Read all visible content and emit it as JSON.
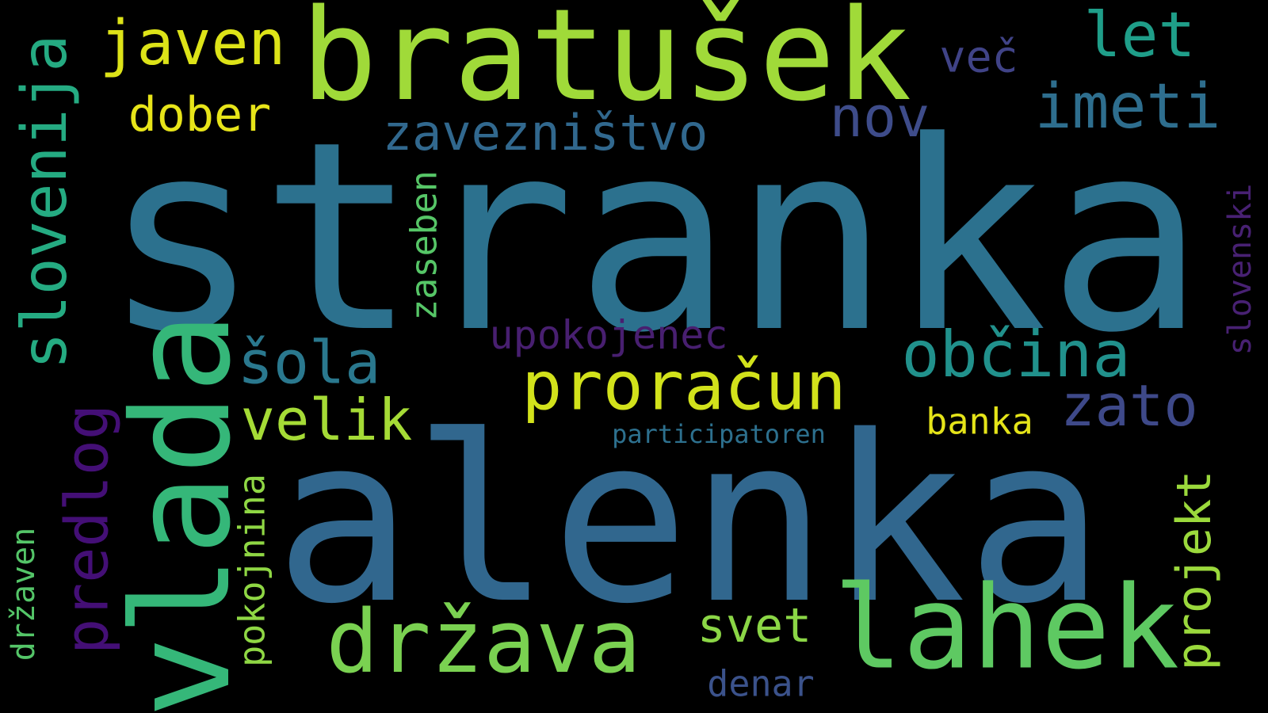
{
  "word_cloud": {
    "background": "#000000",
    "words": [
      {
        "id": "stranka",
        "text": "stranka",
        "color": "#2c718e",
        "orientation": "horizontal"
      },
      {
        "id": "alenka",
        "text": "alenka",
        "color": "#31678e",
        "orientation": "horizontal"
      },
      {
        "id": "bratusek",
        "text": "bratušek",
        "color": "#a0da39",
        "orientation": "horizontal"
      },
      {
        "id": "vlada",
        "text": "vlada",
        "color": "#35b779",
        "orientation": "vertical"
      },
      {
        "id": "lahek",
        "text": "lahek",
        "color": "#5ec962",
        "orientation": "horizontal"
      },
      {
        "id": "drzava",
        "text": "država",
        "color": "#7ad151",
        "orientation": "horizontal"
      },
      {
        "id": "proracun",
        "text": "proračun",
        "color": "#d2e21b",
        "orientation": "horizontal"
      },
      {
        "id": "obcina",
        "text": "občina",
        "color": "#21918c",
        "orientation": "horizontal"
      },
      {
        "id": "slovenija",
        "text": "slovenija",
        "color": "#25ab82",
        "orientation": "vertical"
      },
      {
        "id": "imeti",
        "text": "imeti",
        "color": "#2e6e8e",
        "orientation": "horizontal"
      },
      {
        "id": "javen",
        "text": "javen",
        "color": "#dde318",
        "orientation": "horizontal"
      },
      {
        "id": "let",
        "text": "let",
        "color": "#1f9e89",
        "orientation": "horizontal"
      },
      {
        "id": "zaveznistvo",
        "text": "zavezništvo",
        "color": "#31688e",
        "orientation": "horizontal"
      },
      {
        "id": "predlog",
        "text": "predlog",
        "color": "#440f76",
        "orientation": "vertical"
      },
      {
        "id": "sola",
        "text": "šola",
        "color": "#2a788e",
        "orientation": "horizontal"
      },
      {
        "id": "velik",
        "text": "velik",
        "color": "#a5db36",
        "orientation": "horizontal"
      },
      {
        "id": "zato",
        "text": "zato",
        "color": "#3e4989",
        "orientation": "horizontal"
      },
      {
        "id": "nov",
        "text": "nov",
        "color": "#3e4c8a",
        "orientation": "horizontal"
      },
      {
        "id": "dober",
        "text": "dober",
        "color": "#e7e419",
        "orientation": "horizontal"
      },
      {
        "id": "projekt",
        "text": "projekt",
        "color": "#9bd93c",
        "orientation": "vertical"
      },
      {
        "id": "svet",
        "text": "svet",
        "color": "#8bd646",
        "orientation": "horizontal"
      },
      {
        "id": "upokojenec",
        "text": "upokojenec",
        "color": "#481f70",
        "orientation": "horizontal"
      },
      {
        "id": "vec",
        "text": "več",
        "color": "#404387",
        "orientation": "horizontal"
      },
      {
        "id": "pokojnina",
        "text": "pokojnina",
        "color": "#8fd744",
        "orientation": "vertical"
      },
      {
        "id": "zaseben",
        "text": "zaseben",
        "color": "#56c667",
        "orientation": "vertical"
      },
      {
        "id": "slovenski",
        "text": "slovenski",
        "color": "#482173",
        "orientation": "vertical"
      },
      {
        "id": "banka",
        "text": "banka",
        "color": "#e5e419",
        "orientation": "horizontal"
      },
      {
        "id": "drzaven",
        "text": "državen",
        "color": "#54c568",
        "orientation": "vertical"
      },
      {
        "id": "denar",
        "text": "denar",
        "color": "#3b528b",
        "orientation": "horizontal"
      },
      {
        "id": "participatoren",
        "text": "participatoren",
        "color": "#2d708e",
        "orientation": "horizontal"
      }
    ]
  }
}
